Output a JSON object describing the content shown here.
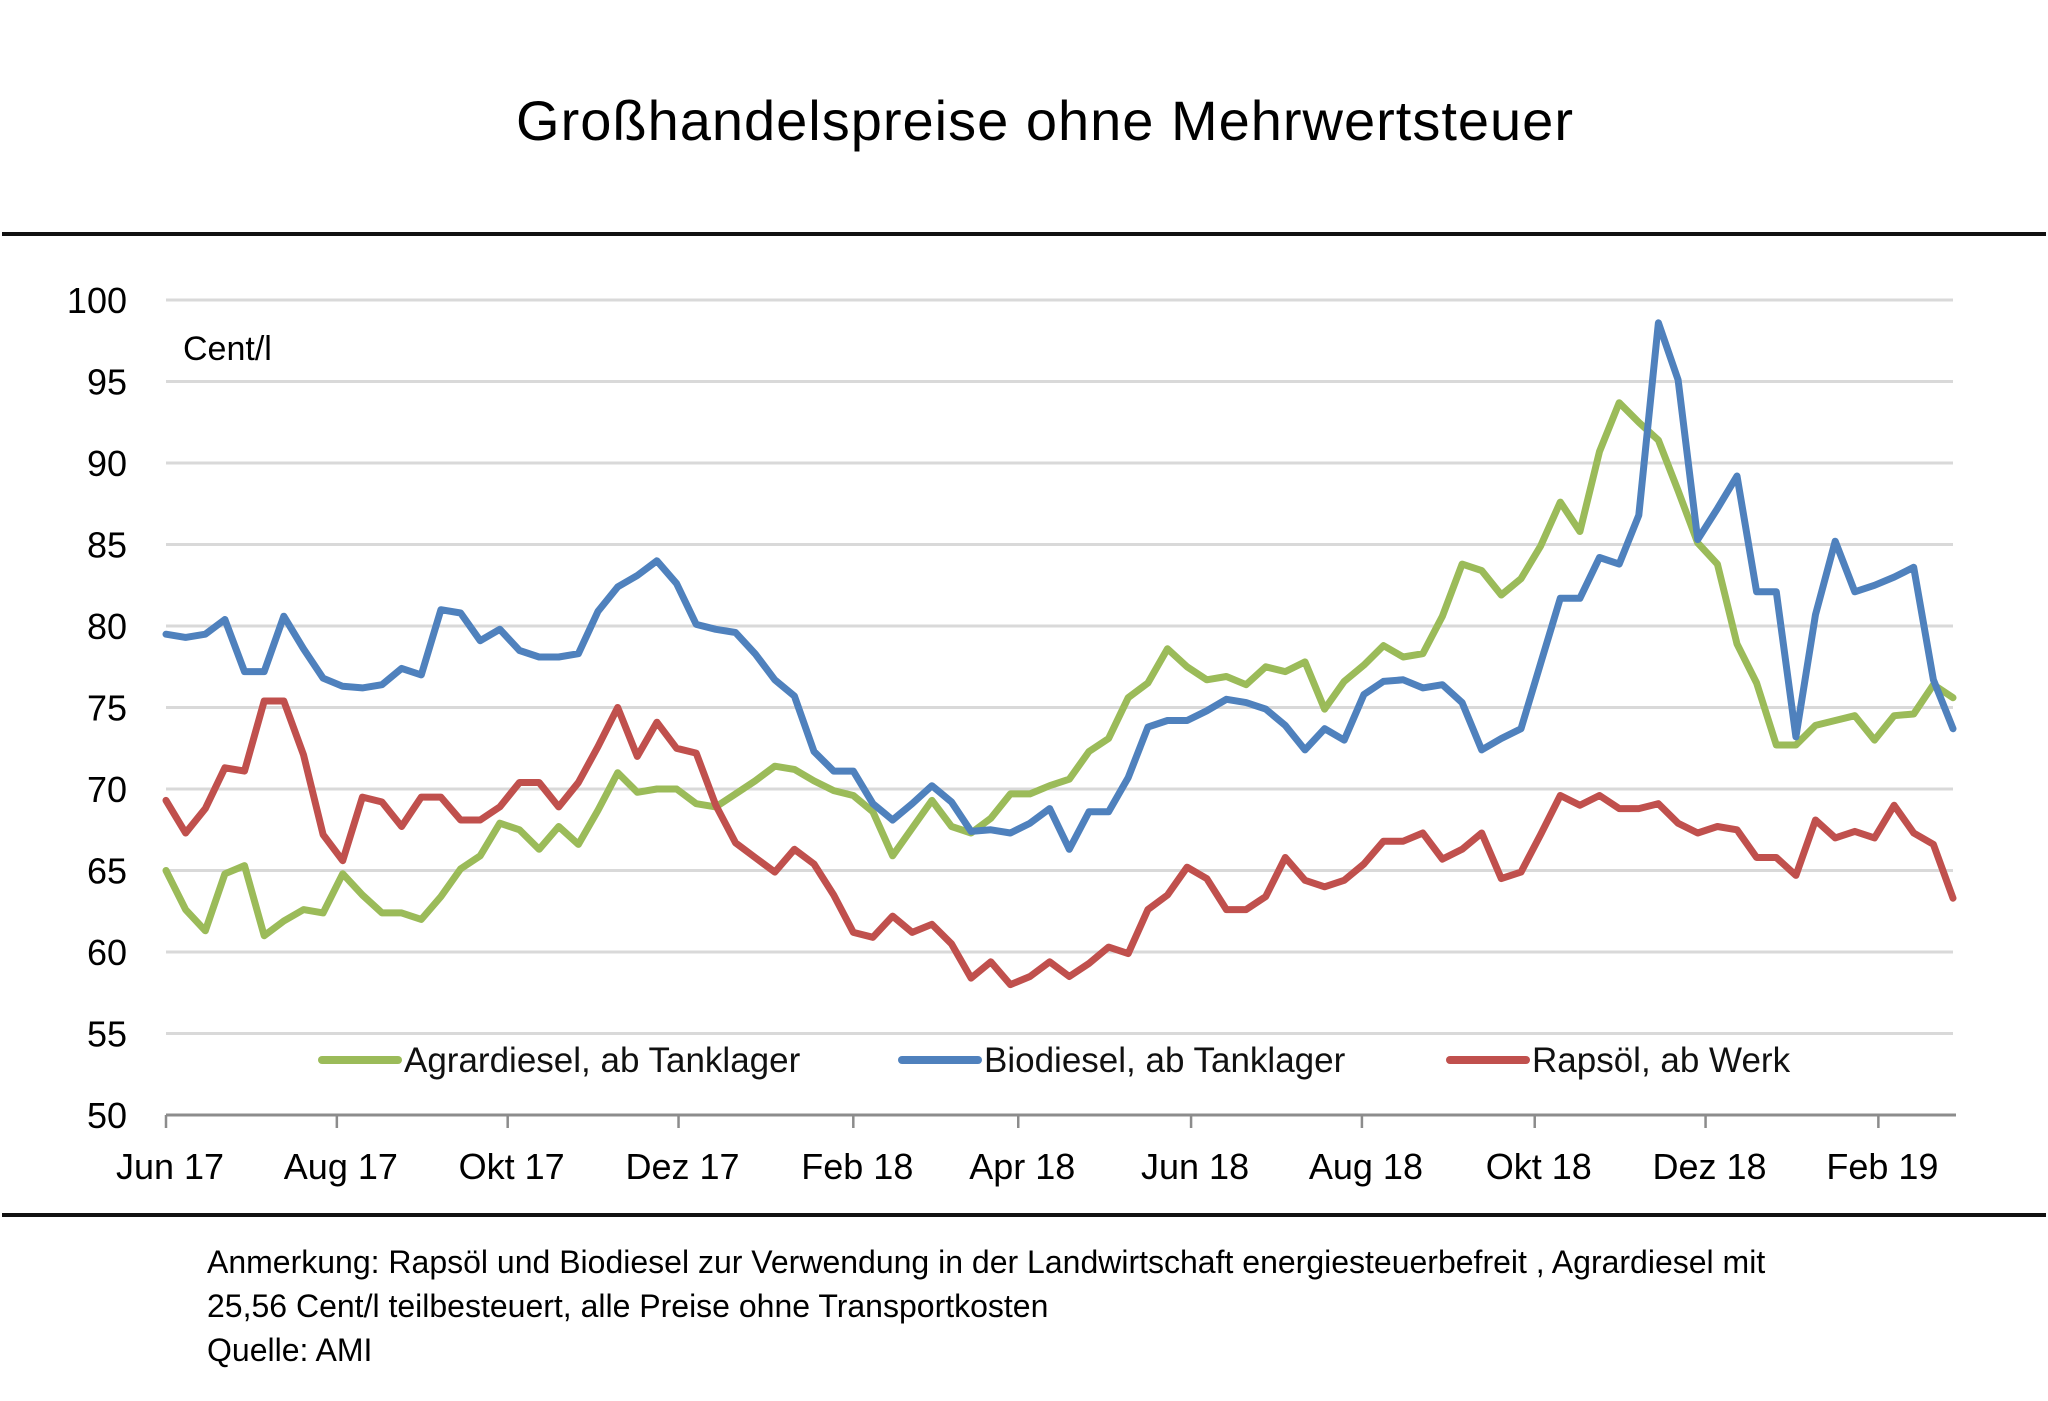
{
  "chart_data": {
    "type": "line",
    "title": "Großhandelspreise ohne Mehrwertsteuer",
    "unit_label": "Cent/l",
    "xlabel": "",
    "ylabel": "Cent/l",
    "ylim": [
      50,
      100
    ],
    "yticks": [
      50,
      55,
      60,
      65,
      70,
      75,
      80,
      85,
      90,
      95,
      100
    ],
    "grid": true,
    "legend_position": "bottom-inside",
    "x_points": 92,
    "x_frequency": "weekly",
    "xticks": [
      {
        "label": "Jun 17",
        "index": 0
      },
      {
        "label": "Aug 17",
        "index": 8.7
      },
      {
        "label": "Okt 17",
        "index": 17.4
      },
      {
        "label": "Dez 17",
        "index": 26.1
      },
      {
        "label": "Feb 18",
        "index": 35.0
      },
      {
        "label": "Apr 18",
        "index": 43.4
      },
      {
        "label": "Jun 18",
        "index": 52.2
      },
      {
        "label": "Aug 18",
        "index": 60.9
      },
      {
        "label": "Okt 18",
        "index": 69.7
      },
      {
        "label": "Dez 18",
        "index": 78.4
      },
      {
        "label": "Feb 19",
        "index": 87.2
      }
    ],
    "series": [
      {
        "name": "Agrardiesel, ab Tanklager",
        "color": "#9BBB59",
        "values": [
          65.0,
          62.6,
          61.3,
          64.8,
          65.3,
          61.0,
          61.9,
          62.6,
          62.4,
          64.8,
          63.5,
          62.4,
          62.4,
          62.0,
          63.4,
          65.1,
          65.9,
          67.9,
          67.5,
          66.3,
          67.7,
          66.6,
          68.7,
          71.0,
          69.8,
          70.0,
          70.0,
          69.1,
          68.9,
          69.7,
          70.5,
          71.4,
          71.2,
          70.5,
          69.9,
          69.6,
          68.6,
          65.9,
          67.6,
          69.3,
          67.7,
          67.3,
          68.2,
          69.7,
          69.7,
          70.2,
          70.6,
          72.3,
          73.1,
          75.6,
          76.5,
          78.6,
          77.5,
          76.7,
          76.9,
          76.4,
          77.5,
          77.2,
          77.8,
          74.9,
          76.6,
          77.6,
          78.8,
          78.1,
          78.3,
          80.6,
          83.8,
          83.4,
          81.9,
          82.9,
          84.9,
          87.6,
          85.8,
          90.7,
          93.7,
          92.5,
          91.4,
          88.3,
          85.1,
          83.8,
          78.9,
          76.5,
          72.7,
          72.7,
          73.9,
          74.2,
          74.5,
          73.0,
          74.5,
          74.6,
          76.4,
          75.6
        ]
      },
      {
        "name": "Biodiesel, ab Tanklager",
        "color": "#4F81BD",
        "values": [
          79.5,
          79.3,
          79.5,
          80.4,
          77.2,
          77.2,
          80.6,
          78.6,
          76.8,
          76.3,
          76.2,
          76.4,
          77.4,
          77.0,
          81.0,
          80.8,
          79.1,
          79.8,
          78.5,
          78.1,
          78.1,
          78.3,
          80.9,
          82.4,
          83.1,
          84.0,
          82.6,
          80.1,
          79.8,
          79.6,
          78.3,
          76.7,
          75.7,
          72.3,
          71.1,
          71.1,
          69.1,
          68.1,
          69.1,
          70.2,
          69.2,
          67.4,
          67.5,
          67.3,
          67.9,
          68.8,
          66.3,
          68.6,
          68.6,
          70.7,
          73.8,
          74.2,
          74.2,
          74.8,
          75.5,
          75.3,
          74.9,
          73.9,
          72.4,
          73.7,
          73.0,
          75.8,
          76.6,
          76.7,
          76.2,
          76.4,
          75.3,
          72.4,
          73.1,
          73.7,
          77.7,
          81.7,
          81.7,
          84.2,
          83.8,
          86.8,
          98.6,
          95.1,
          85.3,
          87.2,
          89.2,
          82.1,
          82.1,
          73.2,
          80.7,
          85.2,
          82.1,
          82.5,
          83.0,
          83.6,
          76.7,
          73.7
        ]
      },
      {
        "name": "Rapsöl, ab Werk",
        "color": "#C0504D",
        "values": [
          69.3,
          67.3,
          68.8,
          71.3,
          71.1,
          75.4,
          75.4,
          72.1,
          67.2,
          65.6,
          69.5,
          69.2,
          67.7,
          69.5,
          69.5,
          68.1,
          68.1,
          68.9,
          70.4,
          70.4,
          68.9,
          70.4,
          72.6,
          75.0,
          72.0,
          74.1,
          72.5,
          72.2,
          69.0,
          66.7,
          65.8,
          64.9,
          66.3,
          65.4,
          63.5,
          61.2,
          60.9,
          62.2,
          61.2,
          61.7,
          60.5,
          58.4,
          59.4,
          58.0,
          58.5,
          59.4,
          58.5,
          59.3,
          60.3,
          59.9,
          62.6,
          63.5,
          65.2,
          64.5,
          62.6,
          62.6,
          63.4,
          65.8,
          64.4,
          64.0,
          64.4,
          65.4,
          66.8,
          66.8,
          67.3,
          65.7,
          66.3,
          67.3,
          64.5,
          64.9,
          67.2,
          69.6,
          69.0,
          69.6,
          68.8,
          68.8,
          69.1,
          67.9,
          67.3,
          67.7,
          67.5,
          65.8,
          65.8,
          64.7,
          68.1,
          67.0,
          67.4,
          67.0,
          69.0,
          67.3,
          66.6,
          63.3
        ]
      }
    ]
  },
  "footer": {
    "note_line1": "Anmerkung: Rapsöl und Biodiesel zur Verwendung in der Landwirtschaft energiesteuerbefreit , Agrardiesel mit",
    "note_line2": "25,56 Cent/l teilbesteuert, alle Preise ohne Transportkosten",
    "source": "Quelle: AMI"
  }
}
